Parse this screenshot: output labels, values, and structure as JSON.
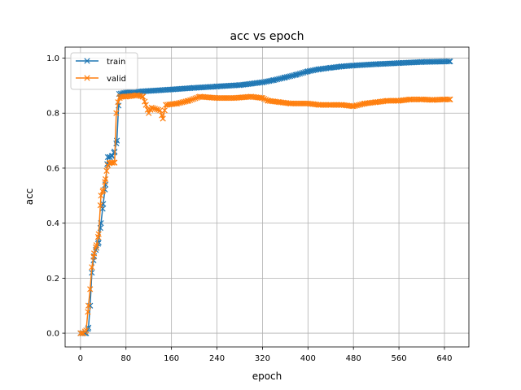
{
  "chart_data": {
    "type": "line",
    "title": "acc vs epoch",
    "xlabel": "epoch",
    "ylabel": "acc",
    "xlim": [
      -27,
      683
    ],
    "ylim": [
      -0.05,
      1.04
    ],
    "xticks": [
      0,
      80,
      160,
      240,
      320,
      400,
      480,
      560,
      640
    ],
    "yticks": [
      0.0,
      0.2,
      0.4,
      0.6,
      0.8,
      1.0
    ],
    "ytick_labels": [
      "0.0",
      "0.2",
      "0.4",
      "0.6",
      "0.8",
      "1.0"
    ],
    "grid": true,
    "legend_position": "upper-left",
    "marker": "x",
    "series": [
      {
        "name": "train",
        "color": "#1f77b4",
        "points": [
          [
            0,
            0.0
          ],
          [
            5,
            0.0
          ],
          [
            10,
            0.0
          ],
          [
            14,
            0.02
          ],
          [
            17,
            0.1
          ],
          [
            20,
            0.22
          ],
          [
            24,
            0.28
          ],
          [
            28,
            0.31
          ],
          [
            32,
            0.33
          ],
          [
            36,
            0.4
          ],
          [
            40,
            0.47
          ],
          [
            44,
            0.54
          ],
          [
            48,
            0.64
          ],
          [
            52,
            0.64
          ],
          [
            56,
            0.645
          ],
          [
            60,
            0.66
          ],
          [
            64,
            0.7
          ],
          [
            68,
            0.87
          ],
          [
            80,
            0.875
          ],
          [
            100,
            0.878
          ],
          [
            130,
            0.882
          ],
          [
            160,
            0.886
          ],
          [
            200,
            0.892
          ],
          [
            240,
            0.897
          ],
          [
            280,
            0.902
          ],
          [
            320,
            0.912
          ],
          [
            340,
            0.92
          ],
          [
            360,
            0.93
          ],
          [
            380,
            0.94
          ],
          [
            400,
            0.952
          ],
          [
            420,
            0.96
          ],
          [
            440,
            0.965
          ],
          [
            460,
            0.97
          ],
          [
            480,
            0.973
          ],
          [
            520,
            0.978
          ],
          [
            560,
            0.982
          ],
          [
            600,
            0.986
          ],
          [
            650,
            0.988
          ]
        ]
      },
      {
        "name": "valid",
        "color": "#ff7f0e",
        "points": [
          [
            0,
            0.0
          ],
          [
            5,
            0.0
          ],
          [
            10,
            0.01
          ],
          [
            14,
            0.1
          ],
          [
            17,
            0.16
          ],
          [
            20,
            0.24
          ],
          [
            24,
            0.29
          ],
          [
            28,
            0.32
          ],
          [
            32,
            0.36
          ],
          [
            36,
            0.5
          ],
          [
            40,
            0.52
          ],
          [
            44,
            0.56
          ],
          [
            46,
            0.59
          ],
          [
            48,
            0.61
          ],
          [
            52,
            0.62
          ],
          [
            56,
            0.62
          ],
          [
            60,
            0.62
          ],
          [
            63,
            0.8
          ],
          [
            66,
            0.84
          ],
          [
            70,
            0.86
          ],
          [
            80,
            0.86
          ],
          [
            100,
            0.865
          ],
          [
            110,
            0.86
          ],
          [
            115,
            0.83
          ],
          [
            120,
            0.8
          ],
          [
            125,
            0.82
          ],
          [
            140,
            0.81
          ],
          [
            145,
            0.78
          ],
          [
            150,
            0.83
          ],
          [
            170,
            0.835
          ],
          [
            190,
            0.845
          ],
          [
            210,
            0.86
          ],
          [
            240,
            0.855
          ],
          [
            270,
            0.855
          ],
          [
            300,
            0.86
          ],
          [
            320,
            0.855
          ],
          [
            330,
            0.845
          ],
          [
            350,
            0.84
          ],
          [
            370,
            0.835
          ],
          [
            400,
            0.835
          ],
          [
            420,
            0.83
          ],
          [
            440,
            0.83
          ],
          [
            460,
            0.83
          ],
          [
            480,
            0.825
          ],
          [
            500,
            0.835
          ],
          [
            520,
            0.84
          ],
          [
            540,
            0.845
          ],
          [
            560,
            0.845
          ],
          [
            580,
            0.85
          ],
          [
            600,
            0.85
          ],
          [
            620,
            0.848
          ],
          [
            640,
            0.85
          ],
          [
            650,
            0.85
          ]
        ]
      }
    ]
  }
}
